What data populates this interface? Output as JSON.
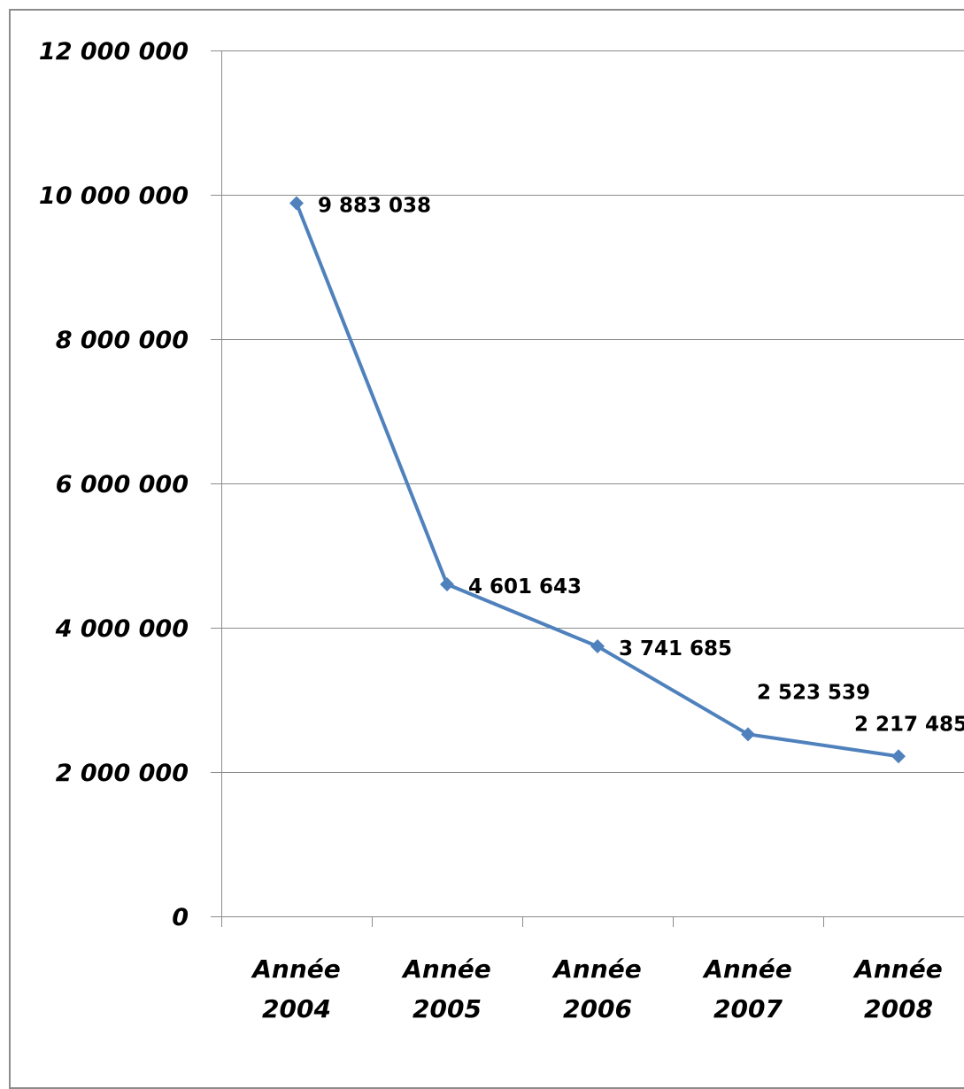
{
  "chart_data": {
    "type": "line",
    "title": "",
    "xlabel": "",
    "ylabel": "",
    "categories": [
      [
        "Année",
        "2004"
      ],
      [
        "Année",
        "2005"
      ],
      [
        "Année",
        "2006"
      ],
      [
        "Année",
        "2007"
      ],
      [
        "Année",
        "2008"
      ]
    ],
    "series": [
      {
        "values": [
          9883038,
          4601643,
          3741685,
          2523539,
          2217485
        ],
        "data_labels": [
          "9 883 038",
          "4 601 643",
          "3 741 685",
          "2 523 539",
          "2 217 485"
        ]
      }
    ],
    "y_ticks": [
      {
        "value": 0,
        "label": "0"
      },
      {
        "value": 2000000,
        "label": "2 000 000"
      },
      {
        "value": 4000000,
        "label": "4 000 000"
      },
      {
        "value": 6000000,
        "label": "6 000 000"
      },
      {
        "value": 8000000,
        "label": "8 000 000"
      },
      {
        "value": 10000000,
        "label": "10 000 000"
      },
      {
        "value": 12000000,
        "label": "12 000 000"
      }
    ],
    "ylim": [
      0,
      12000000
    ],
    "grid": "horizontal",
    "legend": "none",
    "line_color": "#4f81bd",
    "grid_color": "#8c8c8c",
    "frame_color": "#8c8c8c"
  }
}
